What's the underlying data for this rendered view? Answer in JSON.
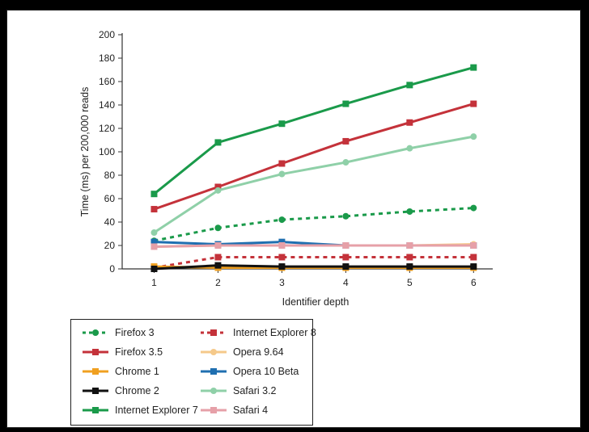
{
  "chart_data": {
    "type": "line",
    "xlabel": "Identifier depth",
    "ylabel": "Time (ms) per 200,000 reads",
    "x": [
      1,
      2,
      3,
      4,
      5,
      6
    ],
    "xlim": [
      0.5,
      6.3
    ],
    "ylim": [
      0,
      200
    ],
    "yticks": [
      0,
      20,
      40,
      60,
      80,
      100,
      120,
      140,
      160,
      180,
      200
    ],
    "grid": false,
    "legend_position": "bottom-left",
    "series": [
      {
        "name": "Firefox 3",
        "color": "#1a9a4a",
        "dash": true,
        "marker": "circle",
        "values": [
          24,
          35,
          42,
          45,
          49,
          52
        ]
      },
      {
        "name": "Internet Explorer 8",
        "color": "#c4323a",
        "dash": true,
        "marker": "square",
        "values": [
          1,
          10,
          10,
          10,
          10,
          10
        ]
      },
      {
        "name": "Firefox 3.5",
        "color": "#c4323a",
        "dash": false,
        "marker": "square",
        "values": [
          51,
          70,
          90,
          109,
          125,
          141
        ]
      },
      {
        "name": "Opera 9.64",
        "color": "#f5c98a",
        "dash": false,
        "marker": "circle",
        "values": [
          19,
          20,
          20,
          20,
          20,
          21
        ]
      },
      {
        "name": "Chrome 1",
        "color": "#f0a020",
        "dash": false,
        "marker": "square",
        "values": [
          2,
          1,
          1,
          1,
          1,
          1
        ]
      },
      {
        "name": "Opera 10 Beta",
        "color": "#1f6fb0",
        "dash": false,
        "marker": "square",
        "values": [
          23,
          21,
          23,
          20,
          20,
          20
        ]
      },
      {
        "name": "Chrome 2",
        "color": "#111111",
        "dash": false,
        "marker": "square",
        "values": [
          0,
          3,
          2,
          2,
          2,
          2
        ]
      },
      {
        "name": "Safari 3.2",
        "color": "#8fd0a8",
        "dash": false,
        "marker": "circle",
        "values": [
          31,
          67,
          81,
          91,
          103,
          113
        ]
      },
      {
        "name": "Internet Explorer 7",
        "color": "#1a9a4a",
        "dash": false,
        "marker": "square",
        "values": [
          64,
          108,
          124,
          141,
          157,
          172
        ]
      },
      {
        "name": "Safari 4",
        "color": "#e6a0a8",
        "dash": false,
        "marker": "square",
        "values": [
          19,
          20,
          20,
          20,
          20,
          20
        ]
      }
    ]
  }
}
